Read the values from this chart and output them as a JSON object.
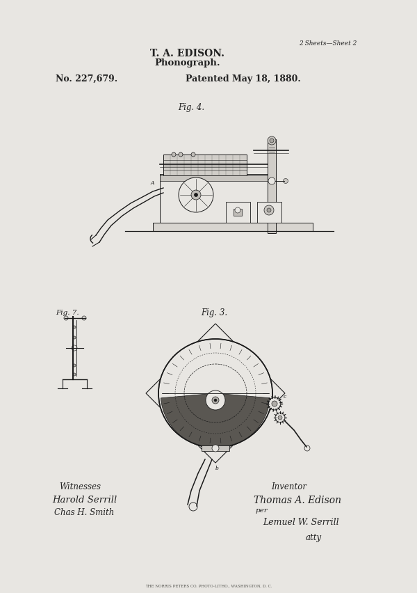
{
  "bg_color": "#e8e6e2",
  "text_color": "#222222",
  "dark": "#1a1a1a",
  "title_line1": "T. A. EDISON.",
  "title_line2": "Phonograph.",
  "patent_no": "No. 227,679.",
  "patent_date": "Patented May 18, 1880.",
  "sheet_info": "2 Sheets—Sheet 2",
  "fig4_label": "Fig. 4.",
  "fig3_label": "Fig. 3.",
  "fig7_label": "Fig. 7.",
  "witnesses_label": "Witnesses",
  "witness1": "Harold Serrill",
  "witness2": "Chas H. Smith",
  "inventor_label": "Inventor",
  "inventor_name": "Thomas A. Edison",
  "inventor_per": "per",
  "inventor_agent": "Lemuel W. Serrill",
  "inventor_atty": "atty",
  "printer_text": "THE NORRIS PETERS CO. PHOTO-LITHO., WASHINGTON, D. C."
}
